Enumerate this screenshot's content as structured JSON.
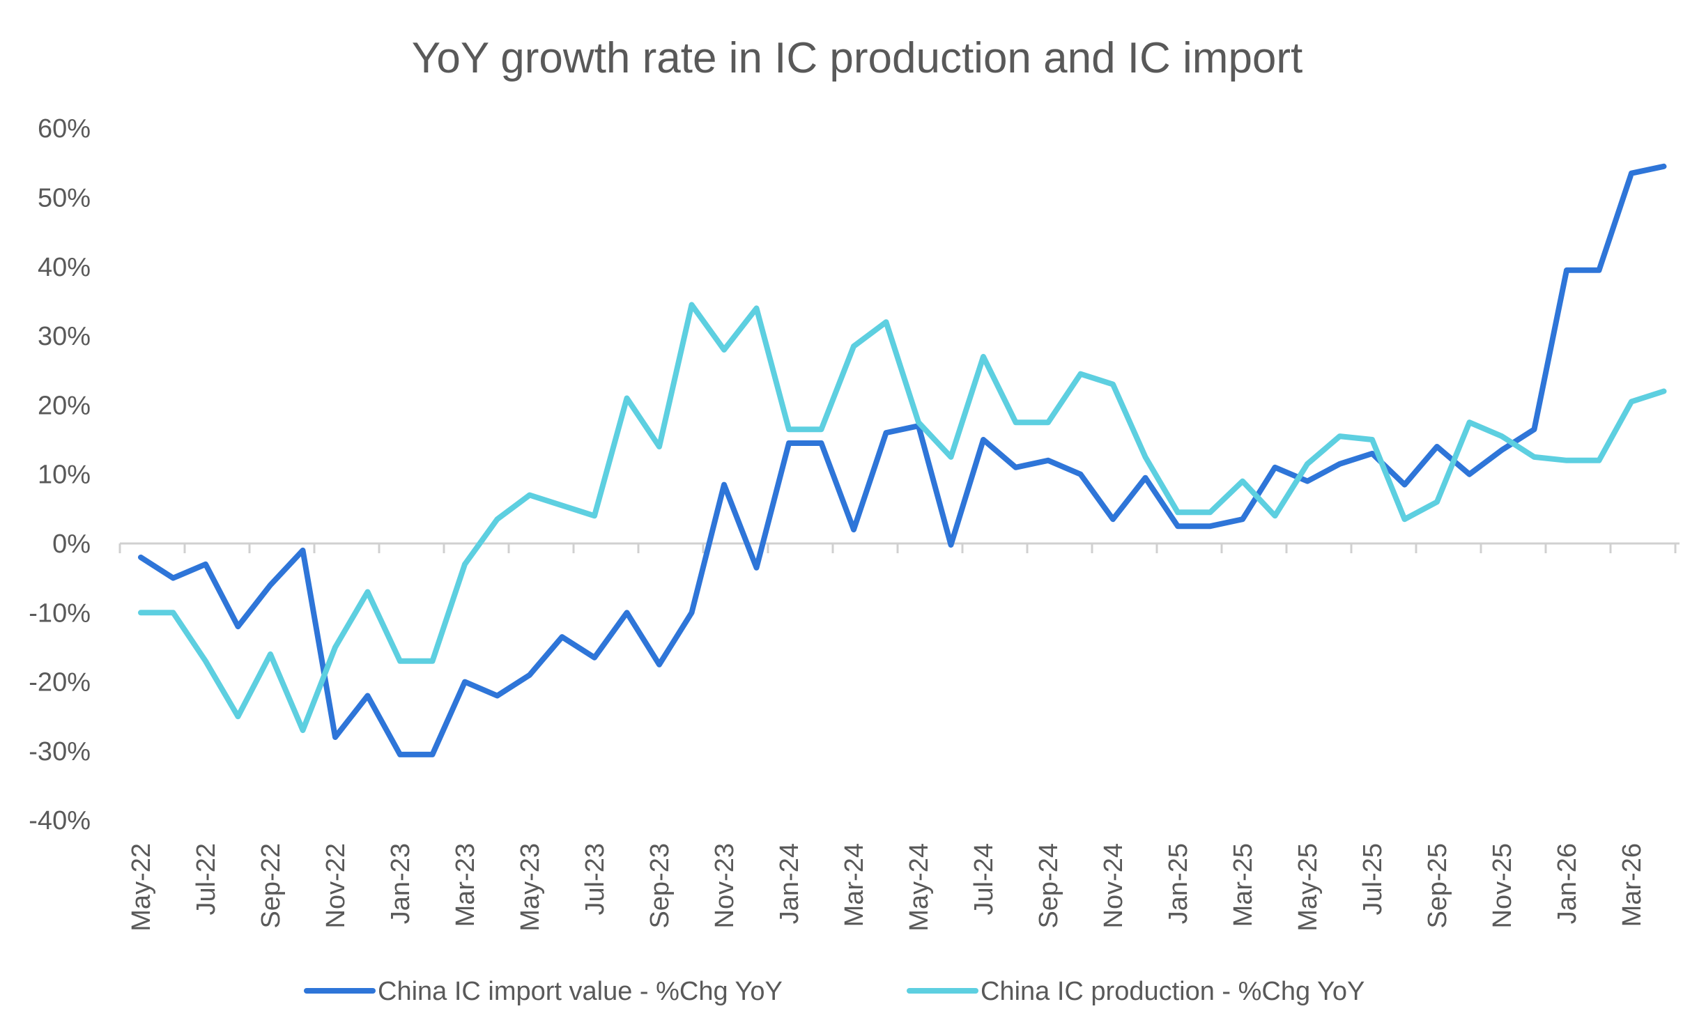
{
  "chart_data": {
    "type": "line",
    "title": "YoY growth rate in IC production and IC import",
    "xlabel": "",
    "ylabel": "",
    "ylim": [
      -40,
      60
    ],
    "y_ticks": [
      {
        "value": 60,
        "label": "60%"
      },
      {
        "value": 50,
        "label": "50%"
      },
      {
        "value": 40,
        "label": "40%"
      },
      {
        "value": 30,
        "label": "30%"
      },
      {
        "value": 20,
        "label": "20%"
      },
      {
        "value": 10,
        "label": "10%"
      },
      {
        "value": 0,
        "label": "0%"
      },
      {
        "value": -10,
        "label": "-10%"
      },
      {
        "value": -20,
        "label": "-20%"
      },
      {
        "value": -30,
        "label": "-30%"
      },
      {
        "value": -40,
        "label": "-40%"
      }
    ],
    "x": [
      "May-22",
      "Jun-22",
      "Jul-22",
      "Aug-22",
      "Sep-22",
      "Oct-22",
      "Nov-22",
      "Dec-22",
      "Jan-23",
      "Feb-23",
      "Mar-23",
      "Apr-23",
      "May-23",
      "Jun-23",
      "Jul-23",
      "Aug-23",
      "Sep-23",
      "Oct-23",
      "Nov-23",
      "Dec-23",
      "Jan-24",
      "Feb-24",
      "Mar-24",
      "Apr-24",
      "May-24",
      "Jun-24",
      "Jul-24",
      "Aug-24",
      "Sep-24",
      "Oct-24",
      "Nov-24",
      "Dec-24",
      "Jan-25",
      "Feb-25",
      "Mar-25",
      "Apr-25",
      "May-25",
      "Jun-25",
      "Jul-25",
      "Aug-25",
      "Sep-25",
      "Oct-25",
      "Nov-25",
      "Dec-25",
      "Jan-26",
      "Feb-26",
      "Mar-26",
      "Apr-26"
    ],
    "x_tick_labels": [
      "May-22",
      "Jul-22",
      "Sep-22",
      "Nov-22",
      "Jan-23",
      "Mar-23",
      "May-23",
      "Jul-23",
      "Sep-23",
      "Nov-23",
      "Jan-24",
      "Mar-24",
      "May-24",
      "Jul-24",
      "Sep-24",
      "Nov-24",
      "Jan-25",
      "Mar-25",
      "May-25",
      "Jul-25",
      "Sep-25",
      "Nov-25",
      "Jan-26",
      "Mar-26"
    ],
    "grid": false,
    "legend_position": "bottom",
    "series": [
      {
        "name": "China IC import value - %Chg YoY",
        "color": "#2E75D8",
        "values": [
          -2,
          -5,
          -3,
          -12,
          -6,
          -1,
          -28,
          -22,
          -30.5,
          -30.5,
          -20,
          -22,
          -19,
          -13.5,
          -16.5,
          -10,
          -17.5,
          -10,
          8.5,
          -3.5,
          14.5,
          14.5,
          2,
          16,
          17,
          -0.2,
          15,
          11,
          12,
          10,
          3.5,
          9.5,
          2.5,
          2.5,
          3.5,
          11,
          9,
          11.5,
          13,
          8.5,
          14,
          10,
          13.5,
          16.5,
          39.5,
          39.5,
          53.5,
          54.5
        ]
      },
      {
        "name": "China IC production - %Chg YoY",
        "color": "#5DCFE0",
        "values": [
          -10,
          -10,
          -17,
          -25,
          -16,
          -27,
          -15,
          -7,
          -17,
          -17,
          -3,
          3.5,
          7,
          5.5,
          4,
          21,
          14,
          34.5,
          28,
          34,
          16.5,
          16.5,
          28.5,
          32,
          17.5,
          12.5,
          27,
          17.5,
          17.5,
          24.5,
          23,
          12.5,
          4.5,
          4.5,
          9,
          4,
          11.5,
          15.5,
          15,
          3.5,
          6,
          17.5,
          15.5,
          12.5,
          12,
          12,
          20.5,
          22
        ]
      }
    ]
  }
}
